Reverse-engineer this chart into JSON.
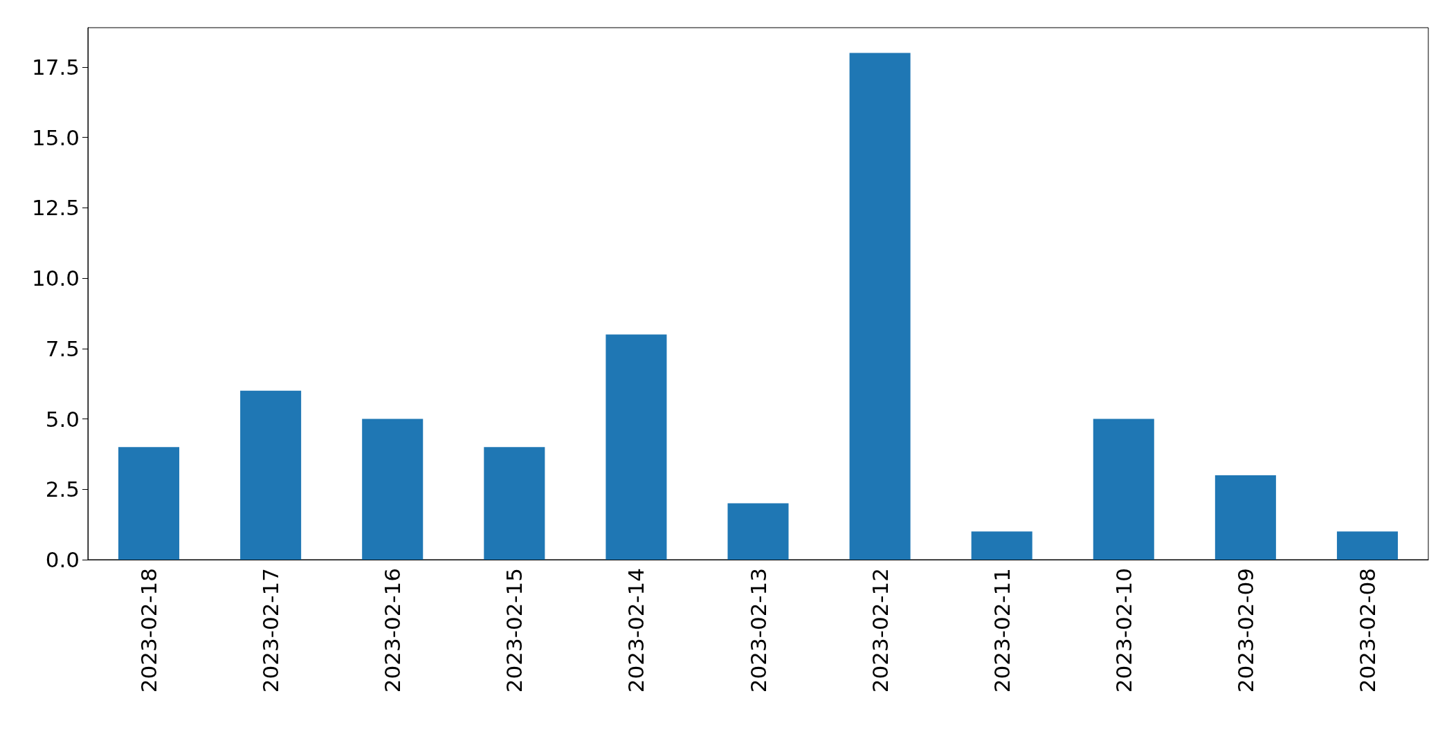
{
  "chart_data": {
    "type": "bar",
    "categories": [
      "2023-02-18",
      "2023-02-17",
      "2023-02-16",
      "2023-02-15",
      "2023-02-14",
      "2023-02-13",
      "2023-02-12",
      "2023-02-11",
      "2023-02-10",
      "2023-02-09",
      "2023-02-08"
    ],
    "values": [
      4,
      6,
      5,
      4,
      8,
      2,
      18,
      1,
      5,
      3,
      1
    ],
    "color": "#1f77b4",
    "ylim": [
      0,
      18.9
    ],
    "yticks": [
      {
        "value": 0,
        "label": "0.0"
      },
      {
        "value": 2.5,
        "label": "2.5"
      },
      {
        "value": 5,
        "label": "5.0"
      },
      {
        "value": 7.5,
        "label": "7.5"
      },
      {
        "value": 10,
        "label": "10.0"
      },
      {
        "value": 12.5,
        "label": "12.5"
      },
      {
        "value": 15,
        "label": "15.0"
      },
      {
        "value": 17.5,
        "label": "17.5"
      }
    ],
    "grid": false
  }
}
